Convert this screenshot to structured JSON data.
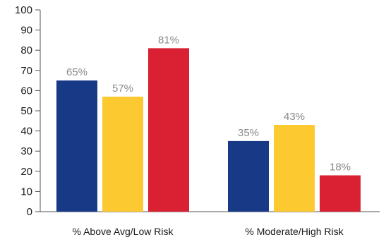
{
  "chart_data": {
    "type": "bar",
    "categories": [
      "% Above Avg/Low Risk",
      "% Moderate/High Risk"
    ],
    "series": [
      {
        "values": [
          65,
          35
        ],
        "color": "#183a86"
      },
      {
        "values": [
          57,
          43
        ],
        "color": "#fcc931"
      },
      {
        "values": [
          81,
          18
        ],
        "color": "#d92133"
      }
    ],
    "data_labels": [
      [
        "65%",
        "35%"
      ],
      [
        "57%",
        "43%"
      ],
      [
        "81%",
        "18%"
      ]
    ],
    "ylim": [
      0,
      100
    ],
    "yticks": [
      0,
      10,
      20,
      30,
      40,
      50,
      60,
      70,
      80,
      90,
      100
    ],
    "ytick_labels": [
      "0",
      "10",
      "20",
      "30",
      "40",
      "50",
      "60",
      "70",
      "80",
      "90",
      "100"
    ],
    "grid": false,
    "legend": "none",
    "title": "",
    "xlabel": "",
    "ylabel": ""
  }
}
